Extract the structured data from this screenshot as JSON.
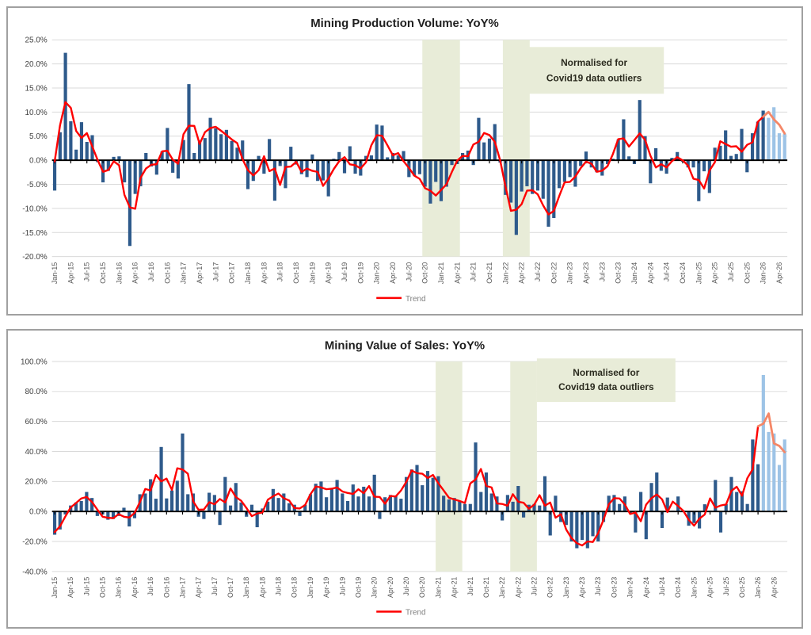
{
  "page": {
    "background": "#ffffff"
  },
  "chart_data": [
    {
      "type": "bar",
      "title": "Mining Production Volume: YoY%",
      "legend_label": "Trend",
      "ylim": [
        -20,
        25
      ],
      "y_tick_labels": [
        "25.0%",
        "20.0%",
        "15.0%",
        "10.0%",
        "5.0%",
        "0.0%",
        "-5.0%",
        "-10.0%",
        "-15.0%",
        "-20.0%"
      ],
      "y_tick_values": [
        25,
        20,
        15,
        10,
        5,
        0,
        -5,
        -10,
        -15,
        -20
      ],
      "x_tick_interval_months": 3,
      "x_ticks": [
        "Jan-15",
        "Apr-15",
        "Jul-15",
        "Oct-15",
        "Jan-16",
        "Apr-16",
        "Jul-16",
        "Oct-16",
        "Jan-17",
        "Apr-17",
        "Jul-17",
        "Oct-17",
        "Jan-18",
        "Apr-18",
        "Jul-18",
        "Oct-18",
        "Jan-19",
        "Apr-19",
        "Jul-19",
        "Oct-19",
        "Jan-20",
        "Apr-20",
        "Jul-20",
        "Oct-20",
        "Jan-21",
        "Apr-21",
        "Jul-21",
        "Oct-21",
        "Jan-22",
        "Apr-22",
        "Jul-22",
        "Oct-22",
        "Jan-23",
        "Apr-23",
        "Jul-23",
        "Oct-23",
        "Jan-24",
        "Apr-24",
        "Jul-24",
        "Oct-24",
        "Jan-25",
        "Apr-25",
        "Jul-25",
        "Oct-25",
        "Jan-26",
        "Apr-26"
      ],
      "values": [
        -6.3,
        5.8,
        22.3,
        8.1,
        2.2,
        7.9,
        3.8,
        5.2,
        -0.4,
        -4.6,
        -2.2,
        0.7,
        0.8,
        -4.6,
        -17.8,
        -7.0,
        -5.4,
        1.5,
        -1.3,
        -3.0,
        1.8,
        6.7,
        -2.6,
        -3.8,
        4.2,
        15.8,
        1.5,
        4.1,
        4.6,
        8.8,
        6.6,
        5.4,
        6.3,
        4.0,
        2.6,
        4.1,
        -6.0,
        -4.3,
        0.9,
        -2.8,
        4.4,
        -8.4,
        -1.2,
        -5.8,
        2.8,
        -0.9,
        -2.9,
        -3.5,
        1.2,
        -4.3,
        -4.2,
        -7.5,
        0.3,
        1.7,
        -2.7,
        2.9,
        -2.8,
        -3.2,
        0.9,
        1.0,
        7.4,
        7.2,
        0.6,
        1.5,
        1.0,
        1.9,
        -3.5,
        -3.2,
        -2.9,
        -5.5,
        -9.0,
        -4.5,
        -8.5,
        -5.5,
        -1.0,
        -0.8,
        1.5,
        2.0,
        -1.0,
        8.8,
        3.7,
        4.5,
        7.5,
        -0.5,
        -7.2,
        -8.8,
        -15.5,
        -6.5,
        -5.4,
        -7.0,
        -6.3,
        -8.0,
        -13.8,
        -12.0,
        -5.8,
        -4.5,
        -3.5,
        -5.5,
        -1.2,
        1.8,
        -1.5,
        -2.5,
        -3.2,
        -0.8,
        0.3,
        4.3,
        8.5,
        0.8,
        -0.8,
        12.5,
        5.0,
        -4.8,
        2.5,
        -2.2,
        -2.8,
        0.5,
        1.7,
        -0.3,
        -1.5,
        -1.5,
        -8.5,
        -2.3,
        -6.8,
        2.6,
        3.0,
        6.2,
        0.9,
        1.3,
        6.5,
        -2.5,
        5.6,
        8.0,
        10.3,
        8.8,
        11.0,
        5.6,
        5.5
      ],
      "trend_note": "3-month centred moving average of values",
      "forecast_start_index": 133,
      "covid_bands_month_ranges": [
        [
          69,
          75
        ],
        [
          84,
          88
        ]
      ],
      "annotation": {
        "lines": [
          "Normalised for",
          "Covid19 data outliers"
        ],
        "box_month_range": [
          88,
          113
        ],
        "box_value_range": [
          13.8,
          23.5
        ]
      },
      "colors": {
        "bar": "#2e5a8b",
        "bar_forecast": "#9dc3e6",
        "trend": "#fe0000",
        "trend_forecast": "#f58767",
        "band": "#e8ecd8",
        "grid": "#dadada",
        "zero_axis": "#000000"
      }
    },
    {
      "type": "bar",
      "title": "Mining Value of Sales: YoY%",
      "legend_label": "Trend",
      "ylim": [
        -40,
        100
      ],
      "y_tick_labels": [
        "100.0%",
        "80.0%",
        "60.0%",
        "40.0%",
        "20.0%",
        "0.0%",
        "-20.0%",
        "-40.0%"
      ],
      "y_tick_values": [
        100,
        80,
        60,
        40,
        20,
        0,
        -20,
        -40
      ],
      "x_tick_interval_months": 3,
      "x_ticks": [
        "Jan-15",
        "Apr-15",
        "Jul-15",
        "Oct-15",
        "Jan-16",
        "Apr-16",
        "Jul-16",
        "Oct-16",
        "Jan-17",
        "Apr-17",
        "Jul-17",
        "Oct-17",
        "Jan-18",
        "Apr-18",
        "Jul-18",
        "Oct-18",
        "Jan-19",
        "Apr-19",
        "Jul-19",
        "Oct-19",
        "Jan-20",
        "Apr-20",
        "Jul-20",
        "Oct-20",
        "Jan-21",
        "Apr-21",
        "Jul-21",
        "Oct-21",
        "Jan-22",
        "Apr-22",
        "Jul-22",
        "Oct-22",
        "Jan-23",
        "Apr-23",
        "Jul-23",
        "Oct-23",
        "Jan-24",
        "Apr-24",
        "Jul-24",
        "Oct-24",
        "Jan-25",
        "Apr-25",
        "Jul-25",
        "Oct-25",
        "Jan-26",
        "Apr-26"
      ],
      "values": [
        -15.5,
        -12.0,
        -2.0,
        4.0,
        6.0,
        7.0,
        13.0,
        9.0,
        -3.0,
        -2.0,
        -5.5,
        -5.0,
        -3.0,
        2.5,
        -10.0,
        -4.5,
        11.5,
        12.0,
        21.5,
        8.5,
        43.0,
        8.7,
        14.0,
        20.5,
        52.0,
        11.5,
        12.0,
        -3.5,
        -5.0,
        12.5,
        11.0,
        -9.0,
        23.0,
        4.0,
        19.0,
        6.0,
        -3.5,
        4.5,
        -10.5,
        2.0,
        6.5,
        15.0,
        9.0,
        12.0,
        5.5,
        4.5,
        -3.0,
        4.5,
        11.5,
        18.5,
        20.0,
        9.5,
        15.0,
        21.0,
        12.0,
        7.0,
        18.0,
        10.0,
        16.5,
        10.0,
        24.5,
        -5.0,
        9.5,
        11.0,
        10.5,
        8.5,
        23.0,
        28.0,
        31.0,
        17.5,
        27.0,
        22.5,
        23.5,
        10.5,
        8.0,
        9.0,
        7.0,
        5.0,
        5.0,
        46.0,
        13.0,
        26.0,
        12.0,
        10.0,
        -6.0,
        11.0,
        6.5,
        17.0,
        -4.0,
        4.5,
        5.0,
        4.0,
        23.5,
        -16.0,
        10.5,
        -7.0,
        -9.0,
        -20.0,
        -24.5,
        -19.0,
        -24.5,
        -16.5,
        -20.0,
        -7.0,
        10.5,
        11.0,
        5.0,
        10.0,
        -1.0,
        -14.0,
        13.0,
        -18.5,
        19.0,
        26.0,
        -11.0,
        9.3,
        0.5,
        10.0,
        0.5,
        -9.5,
        -7.7,
        -11.3,
        4.8,
        0.5,
        21.0,
        -14.0,
        5.0,
        23.0,
        13.0,
        13.5,
        5.0,
        48.0,
        31.5,
        91.0,
        53.0,
        52.0,
        31.0,
        48.0
      ],
      "trend_note": "3-month centred moving average of values",
      "forecast_start_index": 133,
      "covid_bands_month_ranges": [
        [
          72,
          76
        ],
        [
          86,
          90
        ]
      ],
      "annotation": {
        "lines": [
          "Normalised for",
          "Covid19 data outliers"
        ],
        "box_month_range": [
          91,
          116
        ],
        "box_value_range": [
          73,
          102
        ]
      },
      "colors": {
        "bar": "#2e5a8b",
        "bar_forecast": "#9dc3e6",
        "trend": "#fe0000",
        "trend_forecast": "#f58767",
        "band": "#e8ecd8",
        "grid": "#dadada",
        "zero_axis": "#000000"
      }
    }
  ]
}
